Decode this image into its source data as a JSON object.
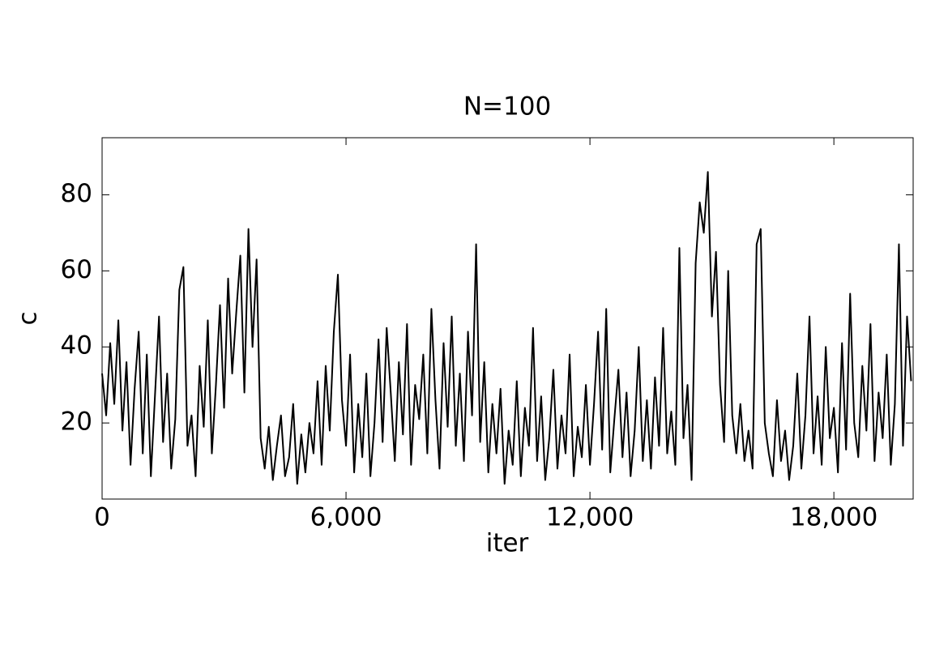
{
  "chart_data": {
    "type": "line",
    "title": "N=100",
    "x_label": "iter",
    "y_label": "c",
    "xlim": [
      0,
      19950
    ],
    "ylim": [
      0,
      95
    ],
    "xticks": [
      0,
      {
        "value": 6000,
        "label": "6,000"
      },
      {
        "value": 12000,
        "label": "12,000"
      },
      {
        "value": 18000,
        "label": "18,000"
      }
    ],
    "yticks": [
      20,
      40,
      60,
      80
    ],
    "x": [
      0,
      100,
      200,
      300,
      400,
      500,
      600,
      700,
      800,
      900,
      1000,
      1100,
      1200,
      1300,
      1400,
      1500,
      1600,
      1700,
      1800,
      1900,
      2000,
      2100,
      2200,
      2300,
      2400,
      2500,
      2600,
      2700,
      2800,
      2900,
      3000,
      3100,
      3200,
      3300,
      3400,
      3500,
      3600,
      3700,
      3800,
      3900,
      4000,
      4100,
      4200,
      4300,
      4400,
      4500,
      4600,
      4700,
      4800,
      4900,
      5000,
      5100,
      5200,
      5300,
      5400,
      5500,
      5600,
      5700,
      5800,
      5900,
      6000,
      6100,
      6200,
      6300,
      6400,
      6500,
      6600,
      6700,
      6800,
      6900,
      7000,
      7100,
      7200,
      7300,
      7400,
      7500,
      7600,
      7700,
      7800,
      7900,
      8000,
      8100,
      8200,
      8300,
      8400,
      8500,
      8600,
      8700,
      8800,
      8900,
      9000,
      9100,
      9200,
      9300,
      9400,
      9500,
      9600,
      9700,
      9800,
      9900,
      10000,
      10100,
      10200,
      10300,
      10400,
      10500,
      10600,
      10700,
      10800,
      10900,
      11000,
      11100,
      11200,
      11300,
      11400,
      11500,
      11600,
      11700,
      11800,
      11900,
      12000,
      12100,
      12200,
      12300,
      12400,
      12500,
      12600,
      12700,
      12800,
      12900,
      13000,
      13100,
      13200,
      13300,
      13400,
      13500,
      13600,
      13700,
      13800,
      13900,
      14000,
      14100,
      14200,
      14300,
      14400,
      14500,
      14600,
      14700,
      14800,
      14900,
      15000,
      15100,
      15200,
      15300,
      15400,
      15500,
      15600,
      15700,
      15800,
      15900,
      16000,
      16100,
      16200,
      16300,
      16400,
      16500,
      16600,
      16700,
      16800,
      16900,
      17000,
      17100,
      17200,
      17300,
      17400,
      17500,
      17600,
      17700,
      17800,
      17900,
      18000,
      18100,
      18200,
      18300,
      18400,
      18500,
      18600,
      18700,
      18800,
      18900,
      19000,
      19100,
      19200,
      19300,
      19400,
      19500,
      19600,
      19700,
      19800,
      19900
    ],
    "series": [
      {
        "color": "#000000",
        "values": [
          33,
          22,
          41,
          25,
          47,
          18,
          36,
          9,
          29,
          44,
          12,
          38,
          6,
          27,
          48,
          15,
          33,
          8,
          21,
          55,
          61,
          14,
          22,
          6,
          35,
          19,
          47,
          12,
          30,
          51,
          24,
          58,
          33,
          49,
          64,
          28,
          71,
          40,
          63,
          16,
          8,
          19,
          5,
          14,
          22,
          6,
          11,
          25,
          4,
          17,
          7,
          20,
          12,
          31,
          9,
          35,
          18,
          44,
          59,
          26,
          14,
          38,
          7,
          25,
          11,
          33,
          6,
          20,
          42,
          15,
          45,
          28,
          10,
          36,
          17,
          46,
          9,
          30,
          21,
          38,
          12,
          50,
          26,
          8,
          41,
          19,
          48,
          14,
          33,
          10,
          44,
          22,
          67,
          15,
          36,
          7,
          25,
          12,
          29,
          4,
          18,
          9,
          31,
          6,
          24,
          14,
          45,
          10,
          27,
          5,
          16,
          34,
          8,
          22,
          12,
          38,
          6,
          19,
          11,
          30,
          9,
          25,
          44,
          13,
          50,
          7,
          21,
          34,
          11,
          28,
          6,
          18,
          40,
          10,
          26,
          8,
          32,
          14,
          45,
          12,
          23,
          9,
          66,
          16,
          30,
          5,
          62,
          78,
          70,
          86,
          48,
          65,
          30,
          15,
          60,
          22,
          12,
          25,
          10,
          18,
          8,
          67,
          71,
          20,
          12,
          6,
          26,
          10,
          18,
          5,
          14,
          33,
          8,
          22,
          48,
          12,
          27,
          9,
          40,
          16,
          24,
          7,
          41,
          13,
          54,
          20,
          11,
          35,
          18,
          46,
          10,
          28,
          16,
          38,
          9,
          25,
          67,
          14,
          48,
          31
        ]
      }
    ]
  }
}
